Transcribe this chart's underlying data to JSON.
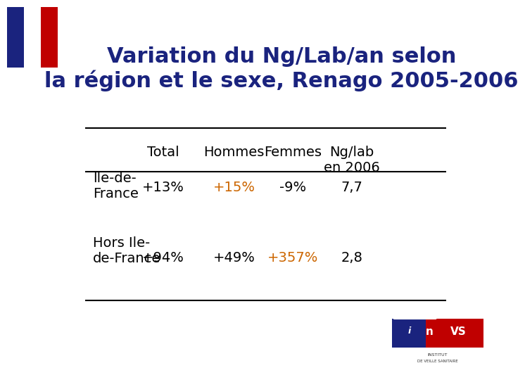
{
  "title_line1": "Variation du Ng/Lab/an selon",
  "title_line2": "la région et le sexe, Renago 2005-2006",
  "title_color": "#1a237e",
  "bg_color": "#ffffff",
  "col_headers": [
    "Total",
    "Hommes",
    "Femmes",
    "Ng/lab\nen 2006"
  ],
  "row_labels": [
    "Ile-de-\nFrance",
    "Hors Ile-\nde-France"
  ],
  "row1_values": [
    "+13%",
    "+15%",
    "-9%",
    "7,7"
  ],
  "row2_values": [
    "+94%",
    "+49%",
    "+357%",
    "2,8"
  ],
  "row1_colors": [
    "#000000",
    "#cc6600",
    "#000000",
    "#000000"
  ],
  "row2_colors": [
    "#000000",
    "#000000",
    "#cc6600",
    "#000000"
  ],
  "header_color": "#000000",
  "line_color": "#000000",
  "font_size_title": 22,
  "font_size_table": 14
}
